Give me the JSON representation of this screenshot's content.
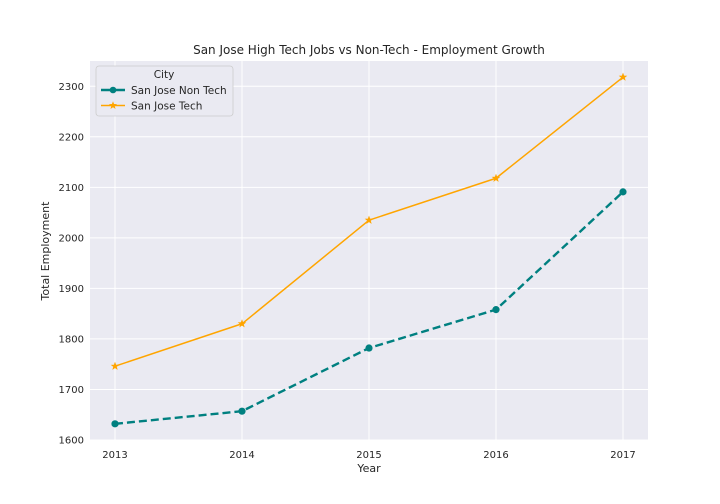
{
  "chart_data": {
    "type": "line",
    "title": "San Jose High Tech Jobs vs Non-Tech - Employment Growth",
    "xlabel": "Year",
    "ylabel": "Total Employment",
    "x": [
      2013,
      2014,
      2015,
      2016,
      2017
    ],
    "xticks": [
      "2013",
      "2014",
      "2015",
      "2016",
      "2017"
    ],
    "yticks": [
      1600,
      1700,
      1800,
      1900,
      2000,
      2100,
      2200,
      2300
    ],
    "ylim": [
      1600,
      2350
    ],
    "grid": true,
    "legend": {
      "title": "City",
      "placement": "top-left"
    },
    "series": [
      {
        "name": "San Jose Non Tech",
        "values": [
          1632,
          1657,
          1782,
          1858,
          2091
        ],
        "color": "#008080",
        "line_style": "dashed",
        "marker": "circle"
      },
      {
        "name": "San Jose Tech",
        "values": [
          1746,
          1830,
          2035,
          2118,
          2318
        ],
        "color": "#ffa500",
        "line_style": "solid",
        "marker": "star"
      }
    ]
  }
}
